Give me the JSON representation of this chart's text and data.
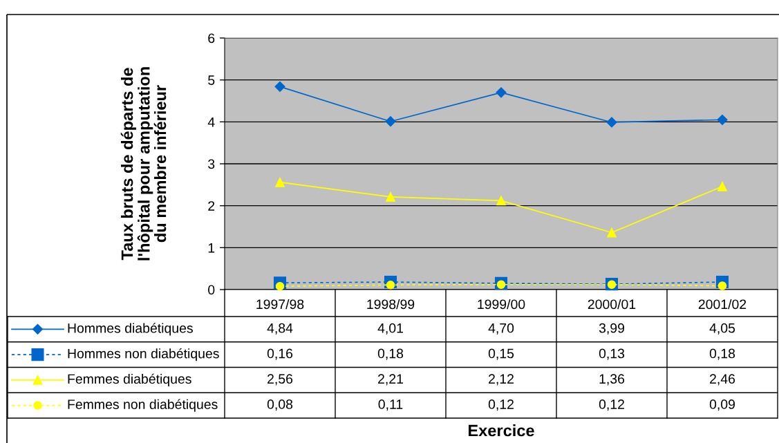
{
  "chart_data": {
    "type": "line",
    "ylabel": "Taux bruts de départs de\nl'hôpital pour amputation\ndu membre inférieur",
    "annotations": [
      "Exercice"
    ],
    "categories": [
      "1997/98",
      "1998/99",
      "1999/00",
      "2000/01",
      "2001/02"
    ],
    "series": [
      {
        "name": "Hommes diabétiques",
        "color": "#0066cc",
        "marker": "diamond",
        "line_style": "solid",
        "values": [
          4.84,
          4.01,
          4.7,
          3.99,
          4.05
        ],
        "value_labels": [
          "4,84",
          "4,01",
          "4,70",
          "3,99",
          "4,05"
        ]
      },
      {
        "name": "Hommes non diabétiques",
        "color": "#0066cc",
        "marker": "square",
        "line_style": "dashed",
        "values": [
          0.16,
          0.18,
          0.15,
          0.13,
          0.18
        ],
        "value_labels": [
          "0,16",
          "0,18",
          "0,15",
          "0,13",
          "0,18"
        ]
      },
      {
        "name": "Femmes diabétiques",
        "color": "#ffff00",
        "marker": "triangle",
        "line_style": "solid",
        "values": [
          2.56,
          2.21,
          2.12,
          1.36,
          2.46
        ],
        "value_labels": [
          "2,56",
          "2,21",
          "2,12",
          "1,36",
          "2,46"
        ]
      },
      {
        "name": "Femmes non diabétiques",
        "color": "#ffff00",
        "marker": "circle",
        "line_style": "dashed",
        "values": [
          0.08,
          0.11,
          0.12,
          0.12,
          0.09
        ],
        "value_labels": [
          "0,08",
          "0,11",
          "0,12",
          "0,12",
          "0,09"
        ]
      }
    ],
    "ylim": [
      0,
      6
    ],
    "yticks": [
      0,
      1,
      2,
      3,
      4,
      5,
      6
    ],
    "grid": "y",
    "legend": "bottom"
  }
}
